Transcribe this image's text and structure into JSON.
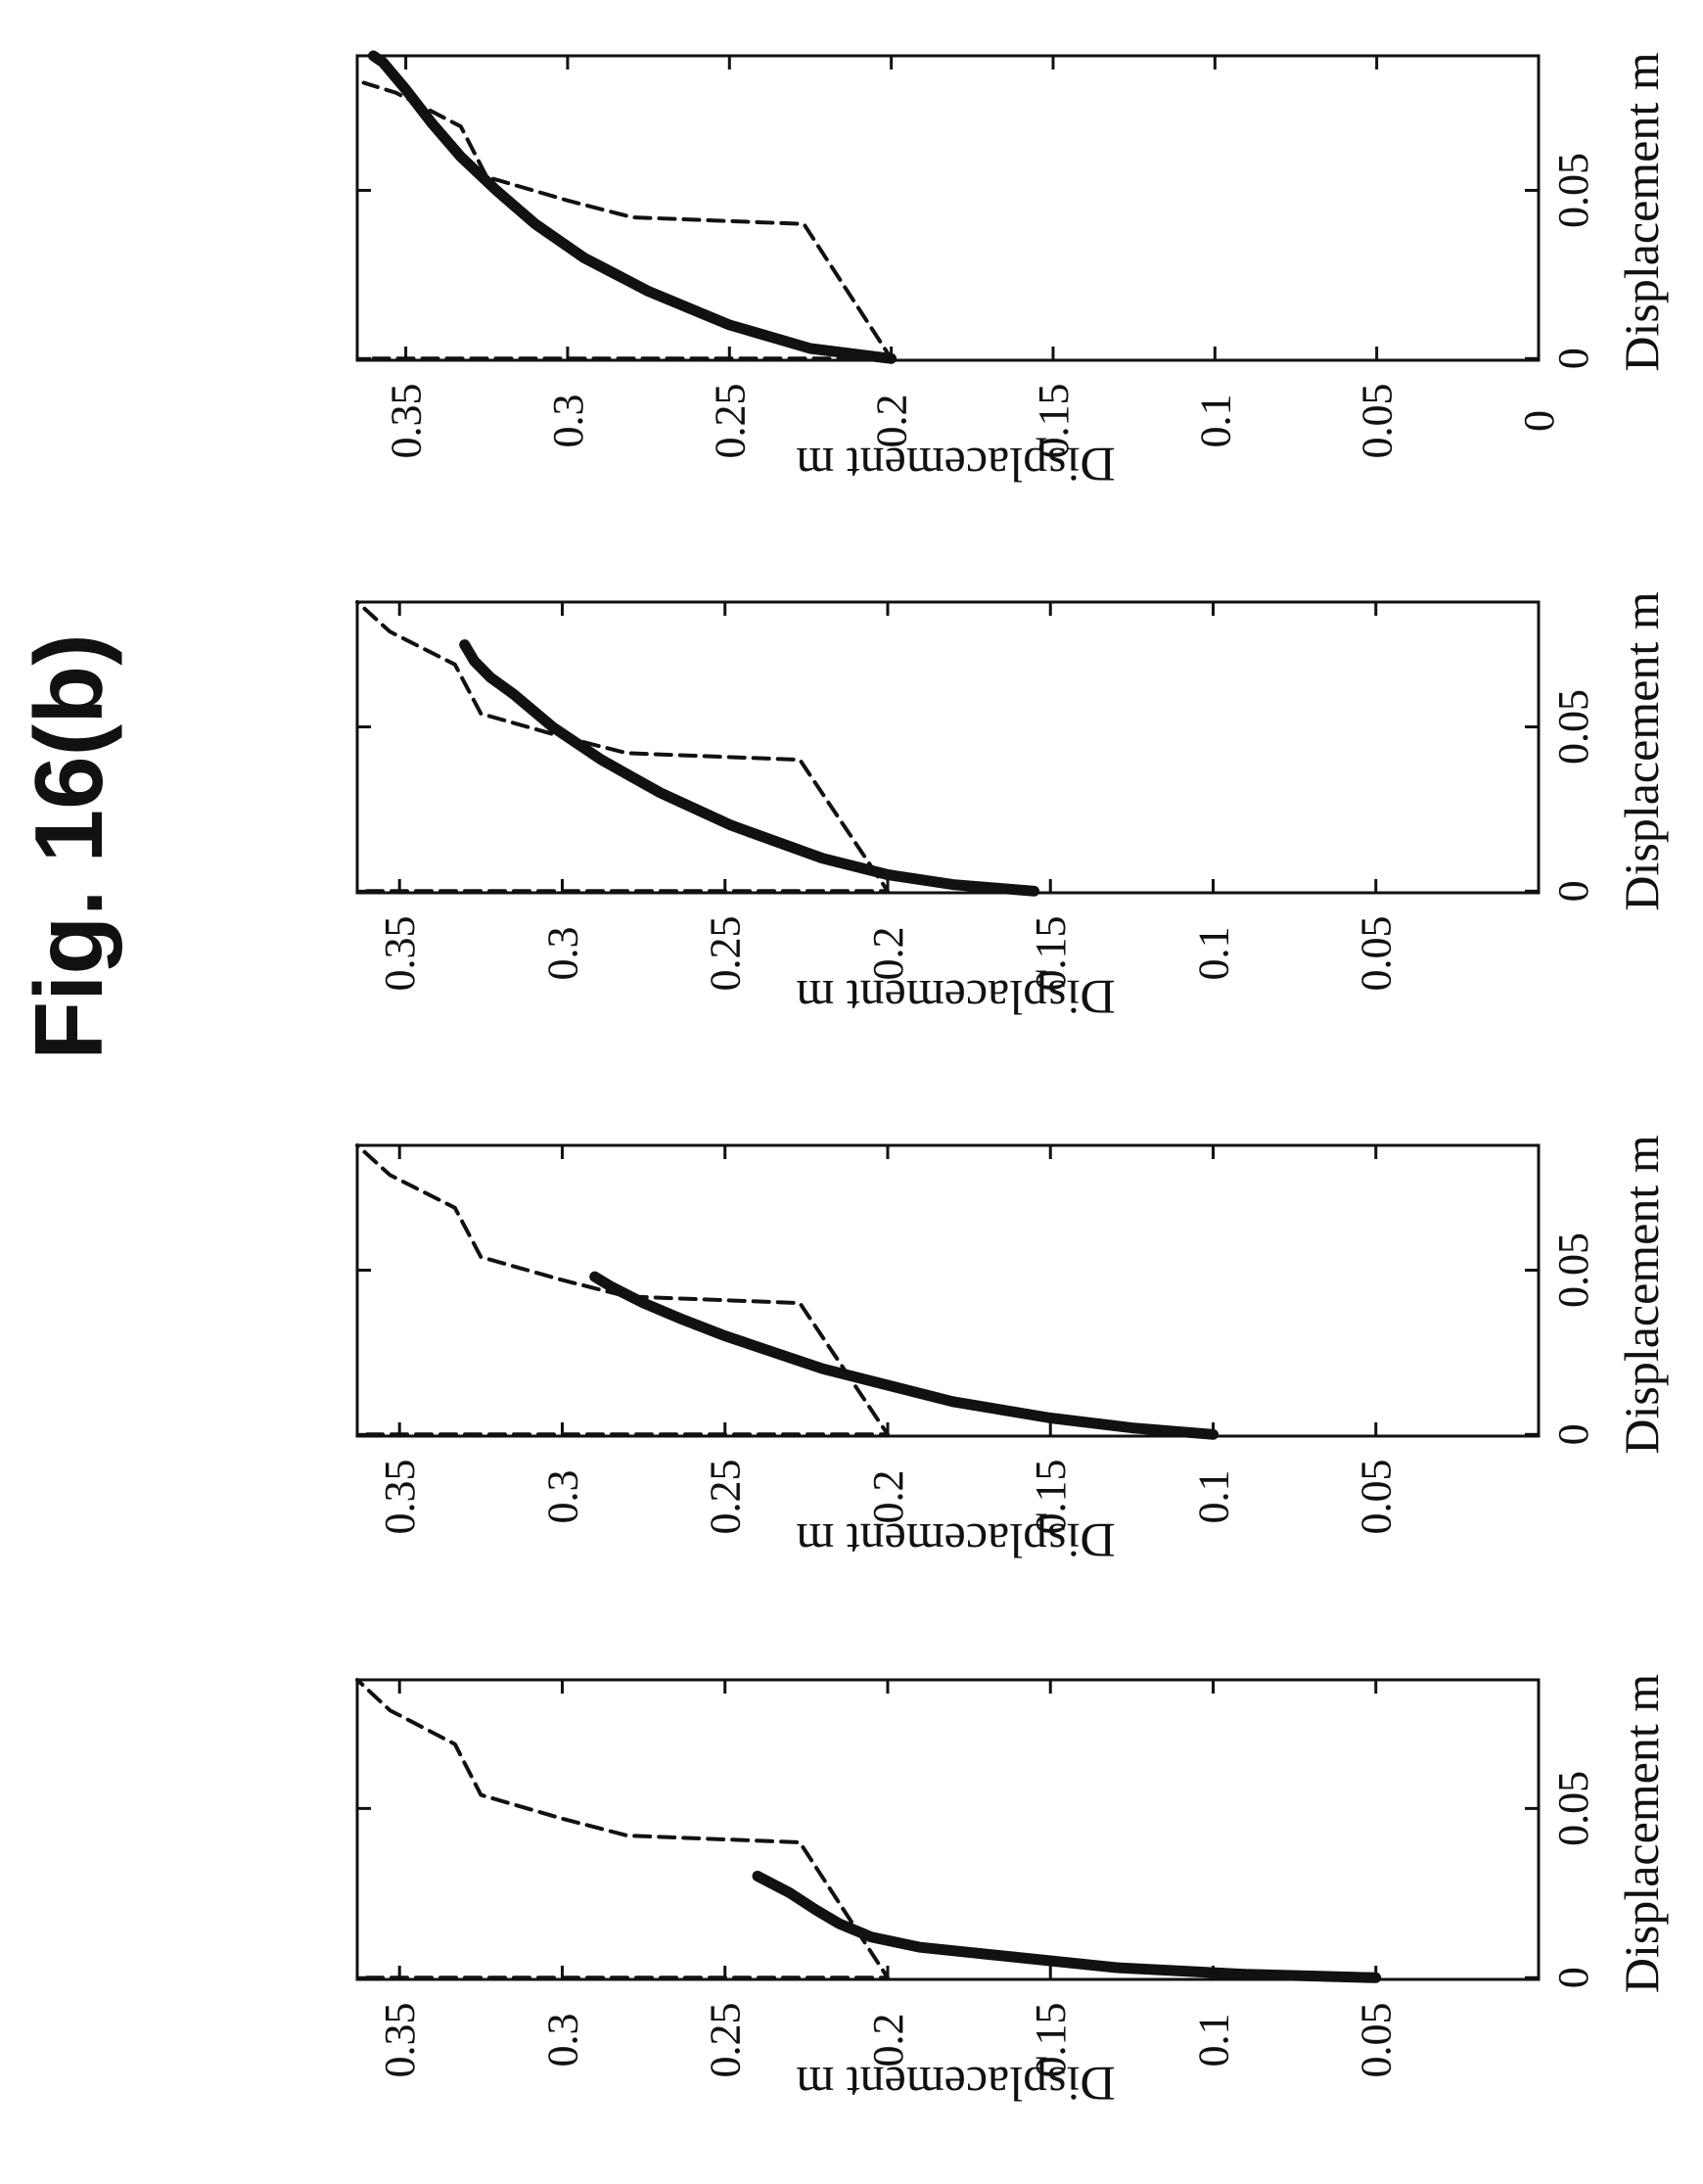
{
  "figure": {
    "title": "Fig. 16(b)"
  },
  "chart_data": [
    {
      "type": "line",
      "panel": 1,
      "xlabel": "Displacement m",
      "ylabel": "Displacement m",
      "xticks": [
        "0",
        "0.05"
      ],
      "yticks": [
        "0.35",
        "0.3",
        "0.25",
        "0.2",
        "0.15",
        "0.1",
        "0.05"
      ],
      "xlim": [
        -0.0005,
        0.088
      ],
      "ylim": [
        0,
        0.363
      ],
      "series": [
        {
          "style": "solid-thick",
          "points": [
            [
              0,
              0.05
            ],
            [
              0.0005,
              0.07
            ],
            [
              0.001,
              0.09
            ],
            [
              0.002,
              0.11
            ],
            [
              0.003,
              0.13
            ],
            [
              0.005,
              0.15
            ],
            [
              0.007,
              0.17
            ],
            [
              0.009,
              0.19
            ],
            [
              0.012,
              0.205
            ],
            [
              0.016,
              0.215
            ],
            [
              0.02,
              0.222
            ],
            [
              0.025,
              0.23
            ],
            [
              0.03,
              0.24
            ]
          ]
        },
        {
          "style": "dashed",
          "points": [
            [
              0,
              0.36
            ],
            [
              0,
              0.2
            ],
            [
              0.04,
              0.227
            ],
            [
              0.042,
              0.28
            ],
            [
              0.047,
              0.3
            ],
            [
              0.054,
              0.325
            ],
            [
              0.069,
              0.333
            ],
            [
              0.079,
              0.353
            ],
            [
              0.088,
              0.363
            ]
          ]
        }
      ]
    },
    {
      "type": "line",
      "panel": 2,
      "xlabel": "Displacement m",
      "ylabel": "Displacement m",
      "xticks": [
        "0",
        "0.05"
      ],
      "yticks": [
        "0.35",
        "0.3",
        "0.25",
        "0.2",
        "0.15",
        "0.1",
        "0.05"
      ],
      "xlim": [
        -0.0005,
        0.088
      ],
      "ylim": [
        0,
        0.363
      ],
      "series": [
        {
          "style": "solid-thick",
          "points": [
            [
              0,
              0.1
            ],
            [
              0.002,
              0.125
            ],
            [
              0.005,
              0.15
            ],
            [
              0.01,
              0.18
            ],
            [
              0.015,
              0.2
            ],
            [
              0.02,
              0.22
            ],
            [
              0.025,
              0.235
            ],
            [
              0.03,
              0.25
            ],
            [
              0.035,
              0.263
            ],
            [
              0.04,
              0.275
            ],
            [
              0.045,
              0.285
            ],
            [
              0.048,
              0.29
            ]
          ]
        },
        {
          "style": "dashed",
          "points": [
            [
              0,
              0.36
            ],
            [
              0,
              0.2
            ],
            [
              0.04,
              0.227
            ],
            [
              0.042,
              0.28
            ],
            [
              0.047,
              0.3
            ],
            [
              0.054,
              0.325
            ],
            [
              0.069,
              0.333
            ],
            [
              0.079,
              0.353
            ],
            [
              0.088,
              0.363
            ]
          ]
        }
      ]
    },
    {
      "type": "line",
      "panel": 3,
      "xlabel": "Displacement m",
      "ylabel": "Displacement m",
      "xticks": [
        "0",
        "0.05"
      ],
      "yticks": [
        "0.35",
        "0.3",
        "0.25",
        "0.2",
        "0.15",
        "0.1",
        "0.05"
      ],
      "xlim": [
        -0.0005,
        0.088
      ],
      "ylim": [
        0,
        0.363
      ],
      "series": [
        {
          "style": "solid-thick",
          "points": [
            [
              0,
              0.155
            ],
            [
              0.002,
              0.18
            ],
            [
              0.005,
              0.2
            ],
            [
              0.01,
              0.22
            ],
            [
              0.02,
              0.248
            ],
            [
              0.03,
              0.27
            ],
            [
              0.04,
              0.288
            ],
            [
              0.05,
              0.303
            ],
            [
              0.06,
              0.315
            ],
            [
              0.065,
              0.322
            ],
            [
              0.07,
              0.327
            ],
            [
              0.075,
              0.33
            ]
          ]
        },
        {
          "style": "dashed",
          "points": [
            [
              0,
              0.36
            ],
            [
              0,
              0.2
            ],
            [
              0.04,
              0.227
            ],
            [
              0.042,
              0.28
            ],
            [
              0.047,
              0.3
            ],
            [
              0.054,
              0.325
            ],
            [
              0.069,
              0.333
            ],
            [
              0.079,
              0.353
            ],
            [
              0.088,
              0.363
            ]
          ]
        }
      ]
    },
    {
      "type": "line",
      "panel": 4,
      "xlabel": "Displacement m",
      "ylabel": "Displacement m",
      "xticks": [
        "0",
        "0.05"
      ],
      "yticks": [
        "0.35",
        "0.3",
        "0.25",
        "0.2",
        "0.15",
        "0.1",
        "0.05",
        "0"
      ],
      "xlim": [
        -0.0005,
        0.09
      ],
      "ylim": [
        0,
        0.365
      ],
      "series": [
        {
          "style": "solid-thick",
          "points": [
            [
              0,
              0.2
            ],
            [
              0.003,
              0.225
            ],
            [
              0.01,
              0.25
            ],
            [
              0.02,
              0.275
            ],
            [
              0.03,
              0.295
            ],
            [
              0.04,
              0.31
            ],
            [
              0.05,
              0.322
            ],
            [
              0.06,
              0.333
            ],
            [
              0.07,
              0.342
            ],
            [
              0.08,
              0.35
            ],
            [
              0.088,
              0.357
            ],
            [
              0.09,
              0.36
            ]
          ]
        },
        {
          "style": "dashed",
          "points": [
            [
              0,
              0.36
            ],
            [
              0,
              0.2
            ],
            [
              0.04,
              0.227
            ],
            [
              0.042,
              0.28
            ],
            [
              0.047,
              0.3
            ],
            [
              0.054,
              0.325
            ],
            [
              0.069,
              0.333
            ],
            [
              0.079,
              0.353
            ],
            [
              0.082,
              0.363
            ]
          ]
        }
      ]
    }
  ]
}
